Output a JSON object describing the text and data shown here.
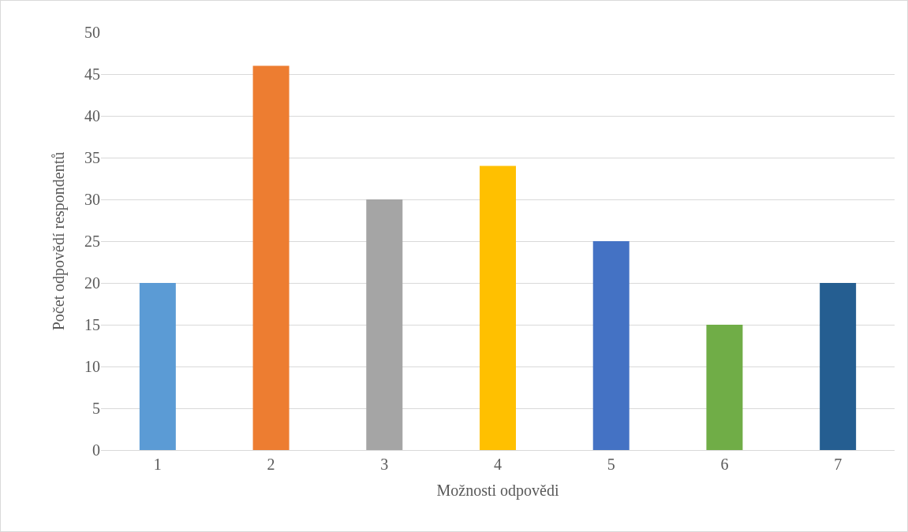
{
  "chart_data": {
    "type": "bar",
    "xlabel": "Možnosti odpovědi",
    "ylabel": "Počet odpovědí respondentů",
    "categories": [
      "1",
      "2",
      "3",
      "4",
      "5",
      "6",
      "7"
    ],
    "values": [
      20,
      46,
      30,
      34,
      25,
      15,
      20
    ],
    "colors": [
      "#5b9bd5",
      "#ed7d31",
      "#a5a5a5",
      "#ffc000",
      "#4472c4",
      "#70ad47",
      "#255e91"
    ],
    "ylim": [
      0,
      50
    ],
    "yticks": [
      0,
      5,
      10,
      15,
      20,
      25,
      30,
      35,
      40,
      45,
      50
    ],
    "grid": "y"
  }
}
